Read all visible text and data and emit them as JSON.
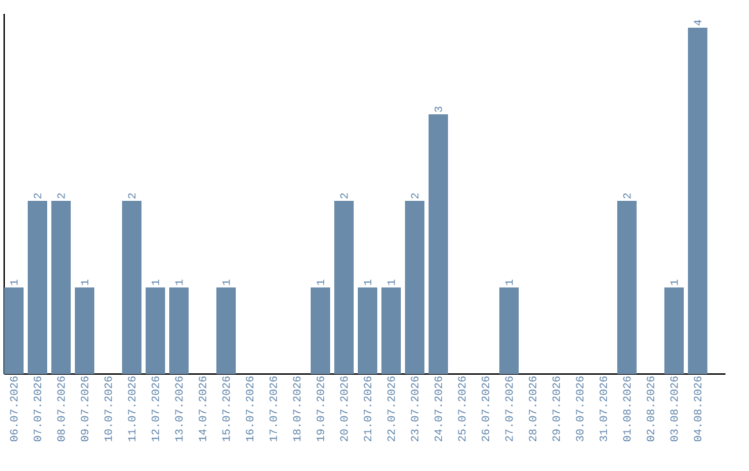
{
  "chart_data": {
    "type": "bar",
    "color": "#6a8caa",
    "categories": [
      "06.07.2026",
      "07.07.2026",
      "08.07.2026",
      "09.07.2026",
      "10.07.2026",
      "11.07.2026",
      "12.07.2026",
      "13.07.2026",
      "14.07.2026",
      "15.07.2026",
      "16.07.2026",
      "17.07.2026",
      "18.07.2026",
      "19.07.2026",
      "20.07.2026",
      "21.07.2026",
      "22.07.2026",
      "23.07.2026",
      "24.07.2026",
      "25.07.2026",
      "26.07.2026",
      "27.07.2026",
      "28.07.2026",
      "29.07.2026",
      "30.07.2026",
      "31.07.2026",
      "01.08.2026",
      "02.08.2026",
      "03.08.2026",
      "04.08.2026"
    ],
    "values": [
      1,
      2,
      2,
      1,
      0,
      2,
      1,
      1,
      0,
      1,
      0,
      0,
      0,
      1,
      2,
      1,
      1,
      2,
      3,
      0,
      0,
      1,
      0,
      0,
      0,
      0,
      2,
      0,
      1,
      4
    ],
    "value_labels": [
      "1",
      "2",
      "2",
      "1",
      null,
      "2",
      "1",
      "1",
      null,
      "1",
      null,
      null,
      null,
      "1",
      "2",
      "1",
      "1",
      "2",
      "3",
      null,
      null,
      "1",
      null,
      null,
      null,
      null,
      "2",
      null,
      "1",
      "4"
    ]
  }
}
